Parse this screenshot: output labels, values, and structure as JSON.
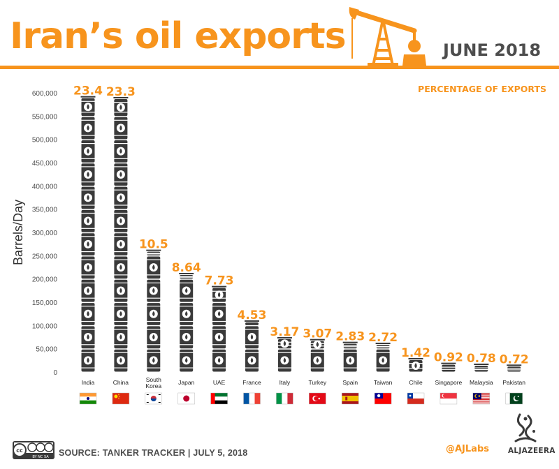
{
  "header": {
    "title": "Iran’s oil exports",
    "date": "JUNE 2018",
    "subtitle": "PERCENTAGE OF EXPORTS"
  },
  "footer": {
    "source": "SOURCE: TANKER TRACKER  |  JULY 5, 2018",
    "handle": "@AJLabs",
    "brand": "ALJAZEERA",
    "cc_label": "BY  NC  SA"
  },
  "colors": {
    "accent": "#f7941d",
    "barrel": "#3a3a3a",
    "text": "#4d4d4d"
  },
  "chart_data": {
    "type": "bar",
    "ylabel": "Barrels/Day",
    "ylim": [
      0,
      600000
    ],
    "yticks": [
      "0",
      "50,000",
      "100,000",
      "150,000",
      "200,000",
      "250,000",
      "300,000",
      "350,000",
      "400,000",
      "450,000",
      "500,000",
      "550,000",
      "600,000"
    ],
    "value_label": "PERCENTAGE OF EXPORTS",
    "categories": [
      "India",
      "China",
      "South Korea",
      "Japan",
      "UAE",
      "France",
      "Italy",
      "Turkey",
      "Spain",
      "Taiwan",
      "Chile",
      "Singapore",
      "Malaysia",
      "Pakistan"
    ],
    "category_lines": [
      [
        "India"
      ],
      [
        "China"
      ],
      [
        "South",
        "Korea"
      ],
      [
        "Japan"
      ],
      [
        "UAE"
      ],
      [
        "France"
      ],
      [
        "Italy"
      ],
      [
        "Turkey"
      ],
      [
        "Spain"
      ],
      [
        "Taiwan"
      ],
      [
        "Chile"
      ],
      [
        "Singapore"
      ],
      [
        "Malaysia"
      ],
      [
        "Pakistan"
      ]
    ],
    "values": [
      590000,
      588000,
      260000,
      210000,
      182000,
      108000,
      72000,
      68000,
      62000,
      60000,
      27000,
      17000,
      15000,
      13000
    ],
    "percent_labels": [
      "23.4",
      "23.3",
      "10.5",
      "8.64",
      "7.73",
      "4.53",
      "3.17",
      "3.07",
      "2.83",
      "2.72",
      "1.42",
      "0.92",
      "0.78",
      "0.72"
    ],
    "flags": [
      "india",
      "china",
      "south-korea",
      "japan",
      "uae",
      "france",
      "italy",
      "turkey",
      "spain",
      "taiwan",
      "chile",
      "singapore",
      "malaysia",
      "pakistan"
    ],
    "grid": false,
    "legend": "none"
  }
}
